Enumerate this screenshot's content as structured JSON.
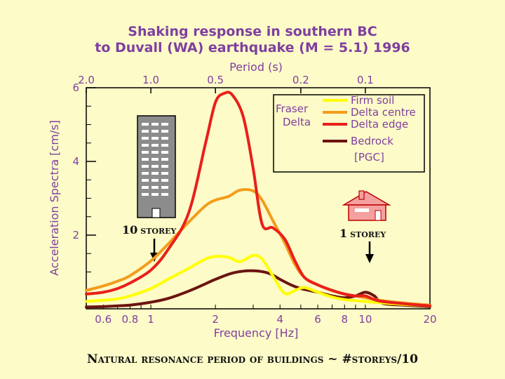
{
  "chart_data": {
    "type": "line",
    "title_line1": "Shaking response in southern BC",
    "title_line2": "to Duvall (WA) earthquake (M = 5.1) 1996",
    "top_axis_label": "Period (s)",
    "top_ticks": [
      {
        "label": "2.0",
        "freq": 0.5
      },
      {
        "label": "1.0",
        "freq": 1.0
      },
      {
        "label": "0.5",
        "freq": 2.0
      },
      {
        "label": "0.2",
        "freq": 5.0
      },
      {
        "label": "0.1",
        "freq": 10.0
      }
    ],
    "xlabel": "Frequency [Hz]",
    "ylabel": "Acceleration Spectra [cm/s]",
    "x_ticks": [
      {
        "label": "0.6",
        "value": 0.6
      },
      {
        "label": "0.8",
        "value": 0.8
      },
      {
        "label": "1",
        "value": 1
      },
      {
        "label": "2",
        "value": 2
      },
      {
        "label": "4",
        "value": 4
      },
      {
        "label": "6",
        "value": 6
      },
      {
        "label": "8",
        "value": 8
      },
      {
        "label": "10",
        "value": 10
      },
      {
        "label": "20",
        "value": 20
      }
    ],
    "x_scale": "log",
    "xlim": [
      0.5,
      20
    ],
    "y_ticks": [
      {
        "label": "2",
        "value": 2
      },
      {
        "label": "4",
        "value": 4
      },
      {
        "label": "6",
        "value": 6
      }
    ],
    "ylim": [
      0,
      6
    ],
    "legend": {
      "group_label_line1": "Fraser",
      "group_label_line2": "Delta",
      "bedrock_note": "[PGC]",
      "placement": "top-right"
    },
    "series": [
      {
        "name": "Firm soil",
        "color": "#ffff00",
        "x": [
          0.5,
          0.6,
          0.7,
          0.8,
          1.0,
          1.2,
          1.5,
          1.8,
          2.0,
          2.3,
          2.6,
          3.0,
          3.3,
          3.7,
          4.2,
          4.7,
          5.2,
          6,
          7,
          8,
          9,
          10,
          12,
          15,
          20
        ],
        "y": [
          0.2,
          0.23,
          0.27,
          0.35,
          0.55,
          0.8,
          1.1,
          1.35,
          1.42,
          1.4,
          1.28,
          1.45,
          1.35,
          0.9,
          0.42,
          0.5,
          0.58,
          0.45,
          0.32,
          0.25,
          0.22,
          0.2,
          0.16,
          0.12,
          0.08
        ]
      },
      {
        "name": "Delta centre",
        "color": "#f29d1c",
        "x": [
          0.5,
          0.6,
          0.7,
          0.8,
          1.0,
          1.2,
          1.5,
          1.8,
          2.0,
          2.3,
          2.6,
          3.0,
          3.3,
          3.7,
          4.2,
          4.7,
          5.2,
          6,
          7,
          8,
          9,
          10,
          12,
          15,
          20
        ],
        "y": [
          0.5,
          0.62,
          0.75,
          0.9,
          1.3,
          1.75,
          2.35,
          2.8,
          2.95,
          3.05,
          3.22,
          3.2,
          2.95,
          2.4,
          1.8,
          1.2,
          0.85,
          0.65,
          0.5,
          0.4,
          0.35,
          0.3,
          0.22,
          0.16,
          0.1
        ]
      },
      {
        "name": "Delta edge",
        "color": "#e8201a",
        "x": [
          0.5,
          0.6,
          0.7,
          0.8,
          1.0,
          1.2,
          1.5,
          1.8,
          2.0,
          2.2,
          2.4,
          2.7,
          3.0,
          3.3,
          3.7,
          4.2,
          4.7,
          5.2,
          6,
          7,
          8,
          9,
          10,
          11,
          12,
          15,
          20
        ],
        "y": [
          0.4,
          0.45,
          0.55,
          0.7,
          1.05,
          1.6,
          2.6,
          4.5,
          5.6,
          5.85,
          5.8,
          5.2,
          3.8,
          2.3,
          2.2,
          1.9,
          1.3,
          0.85,
          0.65,
          0.5,
          0.4,
          0.35,
          0.35,
          0.25,
          0.2,
          0.14,
          0.08
        ]
      },
      {
        "name": "Bedrock",
        "color": "#6b1410",
        "x": [
          0.5,
          0.6,
          0.7,
          0.8,
          1.0,
          1.2,
          1.5,
          1.8,
          2.0,
          2.4,
          2.8,
          3.2,
          3.6,
          4.0,
          4.5,
          5.0,
          6.0,
          7.0,
          8.0,
          9.0,
          10.0,
          11.0,
          12.0,
          15.0,
          20.0
        ],
        "y": [
          0.05,
          0.06,
          0.08,
          0.1,
          0.18,
          0.28,
          0.48,
          0.68,
          0.8,
          0.97,
          1.03,
          1.02,
          0.95,
          0.8,
          0.65,
          0.55,
          0.45,
          0.35,
          0.3,
          0.35,
          0.45,
          0.35,
          0.15,
          0.1,
          0.06
        ]
      }
    ]
  },
  "buildings": {
    "tall_num": "10",
    "tall_word": "storey",
    "house_num": "1",
    "house_word": "storey"
  },
  "caption": "Natural resonance period of buildings ~ #storeys/10"
}
